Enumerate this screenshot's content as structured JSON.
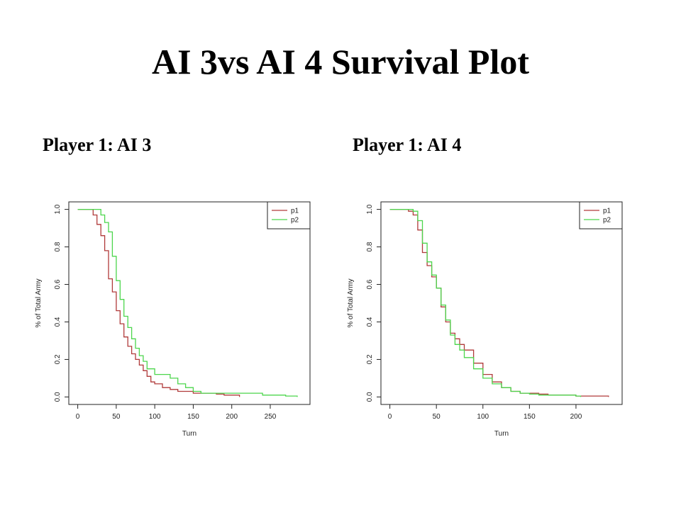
{
  "slide": {
    "title": "AI 3vs AI 4 Survival Plot"
  },
  "colors": {
    "p1": "#b03a3a",
    "p2": "#4cd64c"
  },
  "chart_data": [
    {
      "type": "line",
      "title": "Player 1: AI 3",
      "xlabel": "Turn",
      "ylabel": "% of Total Army",
      "xlim": [
        0,
        290
      ],
      "ylim": [
        0,
        1
      ],
      "xticks": [
        "0",
        "50",
        "100",
        "150",
        "200",
        "250"
      ],
      "yticks": [
        "0.0",
        "0.2",
        "0.4",
        "0.6",
        "0.8",
        "1.0"
      ],
      "legend": "top-right",
      "series": [
        {
          "name": "p1",
          "x": [
            0,
            15,
            20,
            25,
            30,
            35,
            40,
            45,
            50,
            55,
            60,
            65,
            70,
            75,
            80,
            85,
            90,
            95,
            100,
            110,
            120,
            130,
            140,
            150,
            160,
            170,
            180,
            190,
            200,
            210
          ],
          "y": [
            1.0,
            1.0,
            0.97,
            0.92,
            0.86,
            0.78,
            0.63,
            0.56,
            0.46,
            0.39,
            0.32,
            0.27,
            0.23,
            0.2,
            0.17,
            0.14,
            0.11,
            0.08,
            0.07,
            0.05,
            0.04,
            0.03,
            0.03,
            0.02,
            0.02,
            0.02,
            0.015,
            0.01,
            0.01,
            0.0
          ]
        },
        {
          "name": "p2",
          "x": [
            0,
            25,
            30,
            35,
            40,
            45,
            50,
            55,
            60,
            65,
            70,
            75,
            80,
            85,
            90,
            100,
            110,
            120,
            130,
            140,
            150,
            160,
            180,
            200,
            220,
            240,
            260,
            270,
            280,
            285
          ],
          "y": [
            1.0,
            1.0,
            0.97,
            0.93,
            0.88,
            0.75,
            0.62,
            0.52,
            0.43,
            0.37,
            0.31,
            0.26,
            0.22,
            0.19,
            0.15,
            0.12,
            0.12,
            0.1,
            0.07,
            0.05,
            0.03,
            0.02,
            0.02,
            0.02,
            0.02,
            0.01,
            0.01,
            0.005,
            0.005,
            0.0
          ]
        }
      ]
    },
    {
      "type": "line",
      "title": "Player 1: AI 4",
      "xlabel": "Turn",
      "ylabel": "% of Total Army",
      "xlim": [
        0,
        240
      ],
      "ylim": [
        0,
        1
      ],
      "xticks": [
        "0",
        "50",
        "100",
        "150",
        "200"
      ],
      "yticks": [
        "0.0",
        "0.2",
        "0.4",
        "0.6",
        "0.8",
        "1.0"
      ],
      "legend": "top-right",
      "series": [
        {
          "name": "p1",
          "x": [
            0,
            15,
            20,
            25,
            30,
            35,
            40,
            45,
            50,
            55,
            60,
            65,
            70,
            75,
            80,
            90,
            100,
            110,
            120,
            130,
            140,
            150,
            160,
            170,
            180,
            200,
            220,
            235
          ],
          "y": [
            1.0,
            1.0,
            0.99,
            0.97,
            0.89,
            0.77,
            0.7,
            0.64,
            0.58,
            0.48,
            0.4,
            0.34,
            0.31,
            0.28,
            0.25,
            0.18,
            0.12,
            0.08,
            0.05,
            0.03,
            0.02,
            0.02,
            0.015,
            0.01,
            0.01,
            0.005,
            0.005,
            0.0
          ]
        },
        {
          "name": "p2",
          "x": [
            0,
            20,
            25,
            30,
            35,
            40,
            45,
            50,
            55,
            60,
            65,
            70,
            75,
            80,
            90,
            100,
            110,
            120,
            130,
            140,
            150,
            160,
            180,
            200,
            205
          ],
          "y": [
            1.0,
            1.0,
            0.99,
            0.94,
            0.82,
            0.72,
            0.65,
            0.58,
            0.49,
            0.41,
            0.33,
            0.28,
            0.25,
            0.21,
            0.15,
            0.1,
            0.07,
            0.05,
            0.03,
            0.02,
            0.015,
            0.01,
            0.01,
            0.005,
            0.0
          ]
        }
      ]
    }
  ]
}
